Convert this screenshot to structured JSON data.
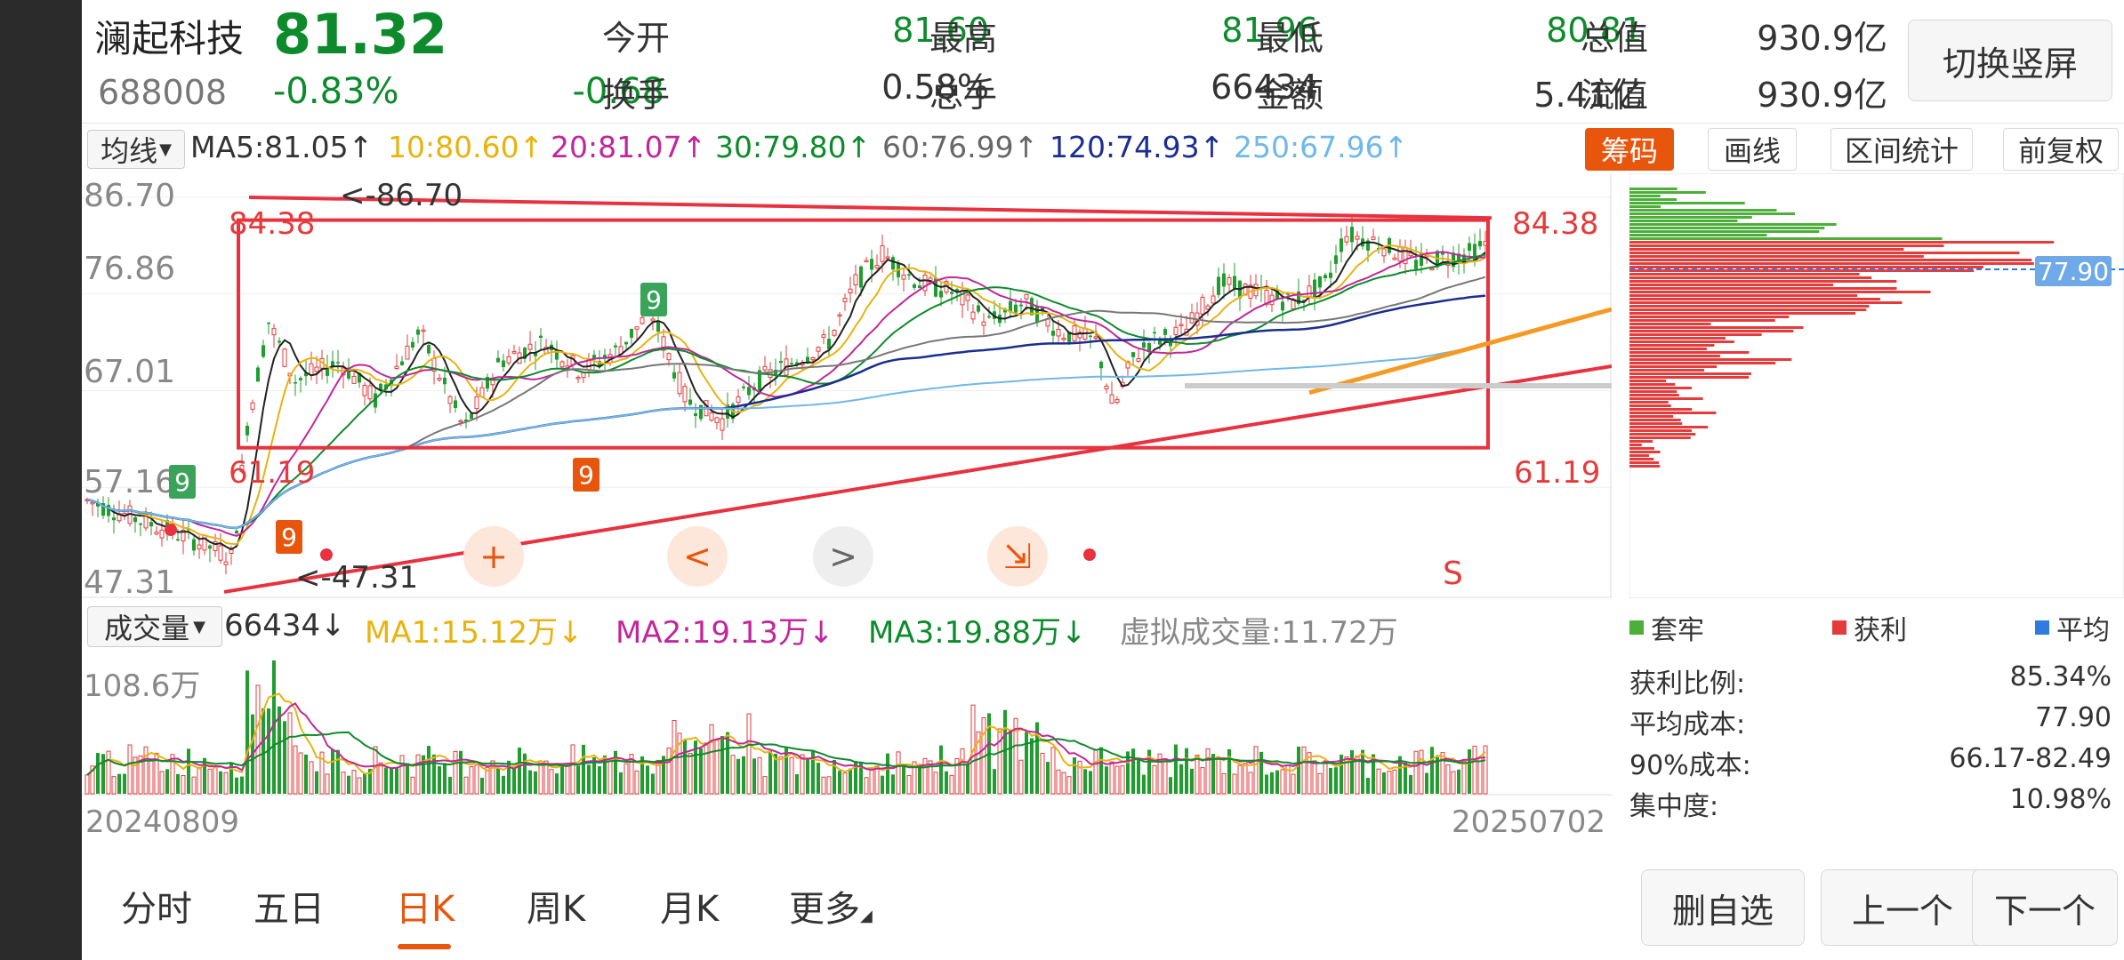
{
  "header": {
    "name": "澜起科技",
    "price": "81.32",
    "code": "688008",
    "change_pct": "-0.83%",
    "change_abs": "-0.68",
    "quotes": [
      {
        "label": "今开",
        "value": "81.60",
        "color": "#0d8b2c"
      },
      {
        "label": "最高",
        "value": "81.96",
        "color": "#0d8b2c"
      },
      {
        "label": "最低",
        "value": "80.81",
        "color": "#0d8b2c"
      },
      {
        "label": "总值",
        "value": "930.9亿",
        "color": "#333333"
      },
      {
        "label": "换手",
        "value": "0.58%",
        "color": "#333333"
      },
      {
        "label": "总手",
        "value": "66434",
        "color": "#333333"
      },
      {
        "label": "金额",
        "value": "5.41亿",
        "color": "#333333"
      },
      {
        "label": "流值",
        "value": "930.9亿",
        "color": "#333333"
      }
    ],
    "switch_button": "切换竖屏"
  },
  "ma_bar": {
    "selector": "均线",
    "items": [
      {
        "text": "MA5:81.05↑",
        "color": "#333333"
      },
      {
        "text": "10:80.60↑",
        "color": "#e8b30e"
      },
      {
        "text": "20:81.07↑",
        "color": "#c0279b"
      },
      {
        "text": "30:79.80↑",
        "color": "#0d8b2c"
      },
      {
        "text": "60:76.99↑",
        "color": "#666666"
      },
      {
        "text": "120:74.93↑",
        "color": "#1a2e8f"
      },
      {
        "text": "250:67.96↑",
        "color": "#6fb9e8"
      }
    ],
    "tools": {
      "chips": "筹码",
      "draw": "画线",
      "range": "区间统计",
      "adjust": "前复权"
    }
  },
  "kchart": {
    "y_labels": [
      "86.70",
      "76.86",
      "67.01",
      "57.16",
      "47.31"
    ],
    "range_high_left": "84.38",
    "range_high_right": "84.38",
    "range_low_left": "61.19",
    "range_low_right": "61.19",
    "max_marker": "<-86.70",
    "min_marker": "<-47.31",
    "sell_marker": "S",
    "cost_tag": "77.90",
    "nine_badges": [
      "9",
      "9",
      "9",
      "9"
    ],
    "nav": {
      "plus": "+",
      "prev": "<",
      "next": ">",
      "shrink": "⇲"
    }
  },
  "volume": {
    "selector": "成交量",
    "items": [
      {
        "text": "66434↓",
        "color": "#333333"
      },
      {
        "text": "MA1:15.12万↓",
        "color": "#e8b30e"
      },
      {
        "text": "MA2:19.13万↓",
        "color": "#c0279b"
      },
      {
        "text": "MA3:19.88万↓",
        "color": "#0d8b2c"
      },
      {
        "text": "虚拟成交量:11.72万",
        "color": "#888888"
      }
    ],
    "max_label": "108.6万",
    "start_date": "20240809",
    "end_date": "20250702"
  },
  "chips_panel": {
    "legend": [
      {
        "label": "套牢",
        "color": "#4caf3a"
      },
      {
        "label": "获利",
        "color": "#e63b3b"
      },
      {
        "label": "平均",
        "color": "#2f7be0"
      }
    ],
    "stats": [
      {
        "label": "获利比例:",
        "value": "85.34%"
      },
      {
        "label": "平均成本:",
        "value": "77.90"
      },
      {
        "label": "90%成本:",
        "value": "66.17-82.49"
      },
      {
        "label": "集中度:",
        "value": "10.98%"
      }
    ]
  },
  "tabs": [
    "分时",
    "五日",
    "日K",
    "周K",
    "月K",
    "更多"
  ],
  "active_tab": "日K",
  "bottom_buttons": {
    "remove": "删自选",
    "prev": "上一个",
    "next": "下一个"
  }
}
